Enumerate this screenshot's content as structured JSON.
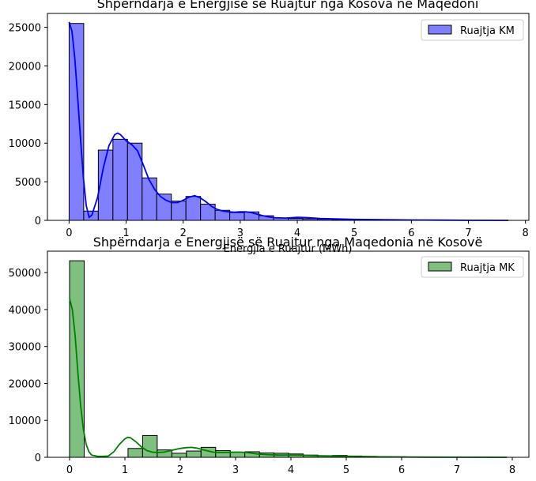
{
  "chart_data": [
    {
      "type": "histogram",
      "title": "Shpërndarja e Energjisë së Ruajtur nga Kosova në Maqedoni",
      "xlabel": "Energjia e Ruajtur (MWh)",
      "ylabel": "",
      "xlim": [
        -0.38,
        8.06
      ],
      "ylim": [
        0,
        26800
      ],
      "xticks": [
        0,
        1,
        2,
        3,
        4,
        5,
        6,
        7,
        8
      ],
      "yticks": [
        0,
        5000,
        10000,
        15000,
        20000,
        25000
      ],
      "bin_width": 0.256,
      "bin_start": 0,
      "counts": [
        25500,
        1200,
        9100,
        10500,
        10000,
        5500,
        3400,
        2500,
        3100,
        2100,
        1300,
        1000,
        1100,
        600,
        300,
        250,
        200,
        150,
        100,
        80,
        60,
        50,
        40,
        30,
        25,
        20,
        15,
        10,
        5,
        5
      ],
      "kde": [
        [
          0,
          25700
        ],
        [
          0.05,
          24500
        ],
        [
          0.1,
          21000
        ],
        [
          0.15,
          16000
        ],
        [
          0.2,
          10500
        ],
        [
          0.25,
          5500
        ],
        [
          0.3,
          1900
        ],
        [
          0.35,
          400
        ],
        [
          0.4,
          700
        ],
        [
          0.5,
          3000
        ],
        [
          0.6,
          6800
        ],
        [
          0.7,
          9700
        ],
        [
          0.8,
          11100
        ],
        [
          0.85,
          11300
        ],
        [
          0.9,
          11100
        ],
        [
          1.0,
          10300
        ],
        [
          1.1,
          9800
        ],
        [
          1.2,
          9000
        ],
        [
          1.3,
          7200
        ],
        [
          1.4,
          5300
        ],
        [
          1.5,
          4000
        ],
        [
          1.6,
          3100
        ],
        [
          1.7,
          2600
        ],
        [
          1.8,
          2300
        ],
        [
          1.9,
          2300
        ],
        [
          2.0,
          2600
        ],
        [
          2.1,
          3000
        ],
        [
          2.2,
          3200
        ],
        [
          2.3,
          2900
        ],
        [
          2.4,
          2400
        ],
        [
          2.5,
          1800
        ],
        [
          2.6,
          1400
        ],
        [
          2.7,
          1200
        ],
        [
          2.8,
          1100
        ],
        [
          2.9,
          1050
        ],
        [
          3.0,
          1100
        ],
        [
          3.1,
          1100
        ],
        [
          3.2,
          1000
        ],
        [
          3.3,
          800
        ],
        [
          3.4,
          600
        ],
        [
          3.5,
          450
        ],
        [
          3.6,
          350
        ],
        [
          3.8,
          300
        ],
        [
          4.0,
          400
        ],
        [
          4.2,
          350
        ],
        [
          4.4,
          250
        ],
        [
          4.6,
          200
        ],
        [
          5.0,
          120
        ],
        [
          5.5,
          80
        ],
        [
          6.0,
          50
        ],
        [
          6.5,
          30
        ],
        [
          7.0,
          15
        ],
        [
          7.7,
          5
        ]
      ],
      "legend": [
        "Ruajtja KM"
      ],
      "legend_position": "top-right",
      "bar_color": "#7f7fff",
      "line_color": "#0000ff",
      "grid": false
    },
    {
      "type": "histogram",
      "title": "Shpërndarja e Energjisë së Ruajtur nga Maqedonia në Kosovë",
      "xlabel": "",
      "ylabel": "",
      "xlim": [
        -0.4,
        8.3
      ],
      "ylim": [
        0,
        55800
      ],
      "xticks": [
        0,
        1,
        2,
        3,
        4,
        5,
        6,
        7,
        8
      ],
      "yticks": [
        0,
        10000,
        20000,
        30000,
        40000,
        50000
      ],
      "bin_width": 0.264,
      "bin_start": 0,
      "counts": [
        53200,
        0,
        0,
        0,
        2400,
        5900,
        2000,
        1100,
        1700,
        2700,
        1800,
        1400,
        1500,
        1200,
        1100,
        900,
        600,
        450,
        500,
        350,
        250,
        200,
        150,
        100,
        80,
        60,
        40,
        30,
        20,
        10
      ],
      "kde": [
        [
          0,
          43000
        ],
        [
          0.05,
          40000
        ],
        [
          0.1,
          33000
        ],
        [
          0.15,
          23000
        ],
        [
          0.2,
          14000
        ],
        [
          0.25,
          7500
        ],
        [
          0.3,
          3500
        ],
        [
          0.35,
          1500
        ],
        [
          0.4,
          600
        ],
        [
          0.5,
          300
        ],
        [
          0.6,
          250
        ],
        [
          0.7,
          350
        ],
        [
          0.8,
          1500
        ],
        [
          0.9,
          3500
        ],
        [
          1.0,
          5000
        ],
        [
          1.05,
          5400
        ],
        [
          1.1,
          5300
        ],
        [
          1.2,
          4200
        ],
        [
          1.3,
          2800
        ],
        [
          1.4,
          1800
        ],
        [
          1.5,
          1400
        ],
        [
          1.6,
          1300
        ],
        [
          1.7,
          1400
        ],
        [
          1.8,
          1700
        ],
        [
          1.9,
          2100
        ],
        [
          2.0,
          2400
        ],
        [
          2.1,
          2600
        ],
        [
          2.2,
          2700
        ],
        [
          2.3,
          2500
        ],
        [
          2.4,
          2100
        ],
        [
          2.5,
          1700
        ],
        [
          2.6,
          1400
        ],
        [
          2.7,
          1300
        ],
        [
          2.8,
          1300
        ],
        [
          2.9,
          1350
        ],
        [
          3.0,
          1400
        ],
        [
          3.1,
          1400
        ],
        [
          3.2,
          1300
        ],
        [
          3.3,
          1100
        ],
        [
          3.4,
          900
        ],
        [
          3.6,
          700
        ],
        [
          3.8,
          600
        ],
        [
          4.0,
          650
        ],
        [
          4.2,
          550
        ],
        [
          4.5,
          400
        ],
        [
          5.0,
          250
        ],
        [
          5.5,
          150
        ],
        [
          6.0,
          90
        ],
        [
          6.5,
          50
        ],
        [
          7.0,
          25
        ],
        [
          7.9,
          5
        ]
      ],
      "legend": [
        "Ruajtja MK"
      ],
      "legend_position": "top-right",
      "bar_color": "#7fbf7f",
      "line_color": "#008000",
      "grid": false
    }
  ]
}
